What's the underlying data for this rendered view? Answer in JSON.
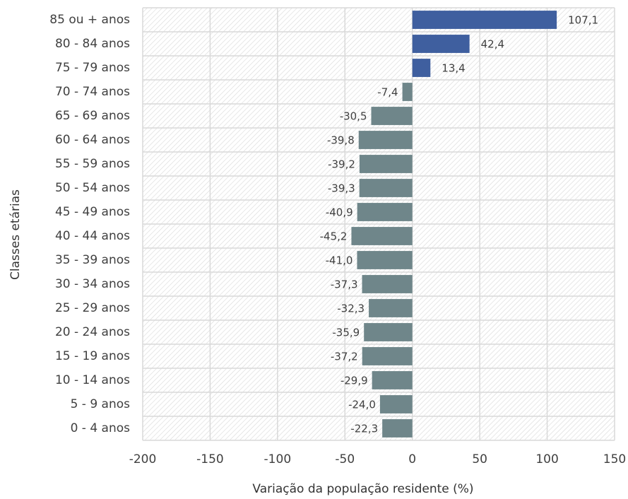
{
  "chart_data": {
    "type": "bar",
    "orientation": "horizontal",
    "x_label": "Variação da população residente (%)",
    "y_label": "Classes etárias",
    "categories": [
      "85 ou + anos",
      "80 - 84 anos",
      "75 - 79 anos",
      "70 - 74 anos",
      "65 - 69 anos",
      "60 - 64 anos",
      "55 - 59 anos",
      "50 - 54 anos",
      "45 - 49 anos",
      "40 - 44 anos",
      "35 - 39 anos",
      "30 - 34 anos",
      "25 - 29 anos",
      "20 - 24 anos",
      "15 - 19 anos",
      "10 - 14 anos",
      "5 - 9 anos",
      "0 - 4 anos"
    ],
    "values": [
      107.1,
      42.4,
      13.4,
      -7.4,
      -30.5,
      -39.8,
      -39.2,
      -39.3,
      -40.9,
      -45.2,
      -41.0,
      -37.3,
      -32.3,
      -35.9,
      -37.2,
      -29.9,
      -24.0,
      -22.3
    ],
    "value_labels": [
      "107,1",
      "42,4",
      "13,4",
      "-7,4",
      "-30,5",
      "-39,8",
      "-39,2",
      "-39,3",
      "-40,9",
      "-45,2",
      "-41,0",
      "-37,3",
      "-32,3",
      "-35,9",
      "-37,2",
      "-29,9",
      "-24,0",
      "-22,3"
    ],
    "colors": [
      "#3f5f9f",
      "#3f5f9f",
      "#3f5f9f",
      "#6f868a",
      "#6f868a",
      "#6f868a",
      "#6f868a",
      "#6f868a",
      "#6f868a",
      "#6f868a",
      "#6f868a",
      "#6f868a",
      "#6f868a",
      "#6f868a",
      "#6f868a",
      "#6f868a",
      "#6f868a",
      "#6f868a"
    ],
    "xlim": [
      -200,
      150
    ],
    "xticks": [
      -200,
      -150,
      -100,
      -50,
      0,
      50,
      100,
      150
    ],
    "grid": true
  }
}
